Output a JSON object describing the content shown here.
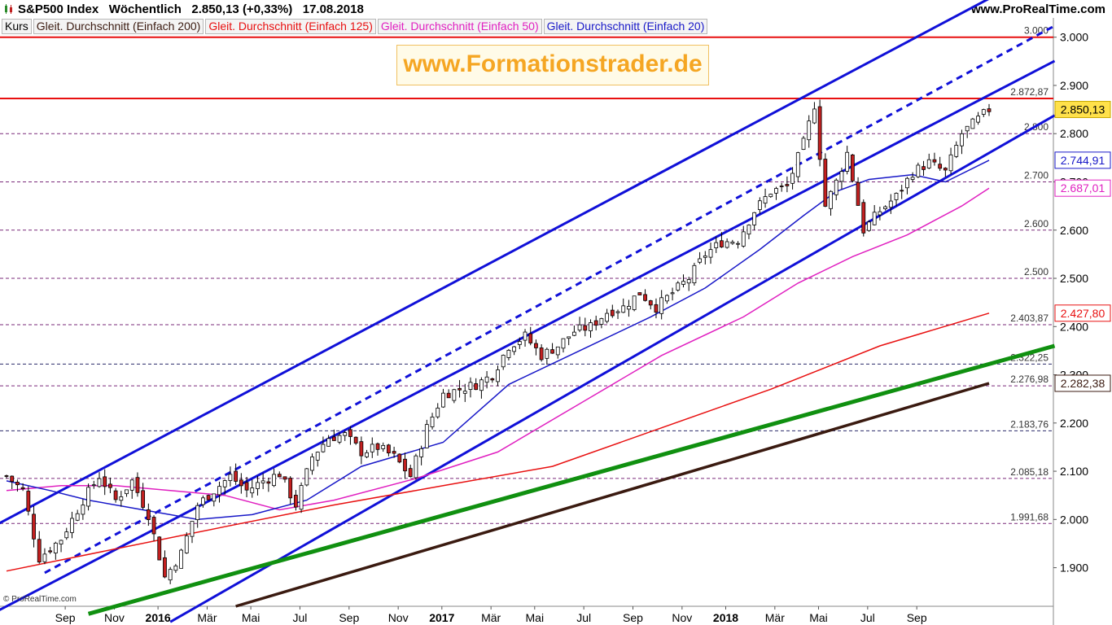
{
  "header": {
    "title": "S&P500 Index   Wöchentlich   2.850,13 (+0,33%)   17.08.2018",
    "site": "www.ProRealTime.com"
  },
  "legend": [
    {
      "label": "Kurs",
      "color": "#000000"
    },
    {
      "label": "Gleit. Durchschnitt (Einfach 200)",
      "color": "#3a1a10"
    },
    {
      "label": "Gleit. Durchschnitt (Einfach 125)",
      "color": "#e81010"
    },
    {
      "label": "Gleit. Durchschnitt (Einfach 50)",
      "color": "#e020c0"
    },
    {
      "label": "Gleit. Durchschnitt (Einfach 20)",
      "color": "#1818c8"
    }
  ],
  "watermark": "www.Formationstrader.de",
  "copyright": "© ProRealTime.com",
  "chart_data": {
    "type": "candlestick",
    "title": "S&P500 Index Wöchentlich",
    "ylim": [
      1820,
      3040
    ],
    "yticks": [
      1900,
      2000,
      2100,
      2200,
      2300,
      2400,
      2500,
      2600,
      2700,
      2800,
      2900,
      3000
    ],
    "ytick_labels": [
      "1.900",
      "2.000",
      "2.100",
      "2.200",
      "2.300",
      "2.400",
      "2.500",
      "2.600",
      "2.700",
      "2.800",
      "2.900",
      "3.000"
    ],
    "xticks": [
      "Sep",
      "Nov",
      "2016",
      "Mär",
      "Mai",
      "Jul",
      "Sep",
      "Nov",
      "2017",
      "Mär",
      "Mai",
      "Jul",
      "Sep",
      "Nov",
      "2018",
      "Mär",
      "Mai",
      "Jul",
      "Sep"
    ],
    "bold_xticks": [
      "2016",
      "2017",
      "2018"
    ],
    "levels": [
      {
        "value": 3000,
        "label": "3.000",
        "color": "#e81010",
        "style": "solid"
      },
      {
        "value": 2872.87,
        "label": "2.872,87",
        "color": "#e81010",
        "style": "solid"
      },
      {
        "value": 2800,
        "label": "2.800",
        "color": "#7a2a7a",
        "style": "dashed"
      },
      {
        "value": 2700,
        "label": "2.700",
        "color": "#7a2a7a",
        "style": "dashed"
      },
      {
        "value": 2600,
        "label": "2.600",
        "color": "#7a2a7a",
        "style": "dashed"
      },
      {
        "value": 2500,
        "label": "2.500",
        "color": "#7a2a7a",
        "style": "dashed"
      },
      {
        "value": 2403.87,
        "label": "2.403,87",
        "color": "#7a2a7a",
        "style": "dashed"
      },
      {
        "value": 2322.25,
        "label": "2.322,25",
        "color": "#2a2a6a",
        "style": "dashed"
      },
      {
        "value": 2276.98,
        "label": "2.276,98",
        "color": "#7a2a7a",
        "style": "dashed"
      },
      {
        "value": 2183.76,
        "label": "2.183,76",
        "color": "#2a2a6a",
        "style": "dashed"
      },
      {
        "value": 2085.18,
        "label": "2.085,18",
        "color": "#7a2a7a",
        "style": "dashed"
      },
      {
        "value": 1991.68,
        "label": "1.991,68",
        "color": "#7a2a7a",
        "style": "dashed"
      }
    ],
    "value_tags": [
      {
        "value": 2850.13,
        "label": "2.850,13",
        "bg": "#ffe14a",
        "fg": "#000000",
        "border": "#c8a800"
      },
      {
        "value": 2744.91,
        "label": "2.744,91",
        "bg": "#ffffff",
        "fg": "#1818c8",
        "border": "#1818c8"
      },
      {
        "value": 2687.01,
        "label": "2.687,01",
        "bg": "#ffffff",
        "fg": "#e020c0",
        "border": "#e020c0"
      },
      {
        "value": 2427.8,
        "label": "2.427,80",
        "bg": "#ffffff",
        "fg": "#e81010",
        "border": "#e81010"
      },
      {
        "value": 2282.38,
        "label": "2.282,38",
        "bg": "#ffffff",
        "fg": "#3a1a10",
        "border": "#3a1a10"
      }
    ],
    "anchors": [
      {
        "w": 0,
        "v": 2090
      },
      {
        "w": 3,
        "v": 2060
      },
      {
        "w": 6,
        "v": 1920
      },
      {
        "w": 10,
        "v": 1960
      },
      {
        "w": 14,
        "v": 2040
      },
      {
        "w": 17,
        "v": 2090
      },
      {
        "w": 20,
        "v": 2040
      },
      {
        "w": 23,
        "v": 2080
      },
      {
        "w": 26,
        "v": 2010
      },
      {
        "w": 29,
        "v": 1880
      },
      {
        "w": 32,
        "v": 1930
      },
      {
        "w": 35,
        "v": 2030
      },
      {
        "w": 38,
        "v": 2060
      },
      {
        "w": 41,
        "v": 2090
      },
      {
        "w": 44,
        "v": 2060
      },
      {
        "w": 47,
        "v": 2080
      },
      {
        "w": 50,
        "v": 2095
      },
      {
        "w": 53,
        "v": 2030
      },
      {
        "w": 56,
        "v": 2130
      },
      {
        "w": 59,
        "v": 2170
      },
      {
        "w": 62,
        "v": 2175
      },
      {
        "w": 65,
        "v": 2140
      },
      {
        "w": 68,
        "v": 2150
      },
      {
        "w": 71,
        "v": 2130
      },
      {
        "w": 74,
        "v": 2090
      },
      {
        "w": 77,
        "v": 2190
      },
      {
        "w": 80,
        "v": 2260
      },
      {
        "w": 83,
        "v": 2270
      },
      {
        "w": 86,
        "v": 2280
      },
      {
        "w": 89,
        "v": 2300
      },
      {
        "w": 92,
        "v": 2360
      },
      {
        "w": 95,
        "v": 2380
      },
      {
        "w": 98,
        "v": 2340
      },
      {
        "w": 101,
        "v": 2360
      },
      {
        "w": 104,
        "v": 2390
      },
      {
        "w": 107,
        "v": 2400
      },
      {
        "w": 110,
        "v": 2430
      },
      {
        "w": 113,
        "v": 2440
      },
      {
        "w": 116,
        "v": 2470
      },
      {
        "w": 119,
        "v": 2440
      },
      {
        "w": 122,
        "v": 2470
      },
      {
        "w": 125,
        "v": 2500
      },
      {
        "w": 128,
        "v": 2550
      },
      {
        "w": 131,
        "v": 2575
      },
      {
        "w": 134,
        "v": 2580
      },
      {
        "w": 137,
        "v": 2640
      },
      {
        "w": 140,
        "v": 2680
      },
      {
        "w": 143,
        "v": 2690
      },
      {
        "w": 146,
        "v": 2780
      },
      {
        "w": 148,
        "v": 2860
      },
      {
        "w": 150,
        "v": 2650
      },
      {
        "w": 152,
        "v": 2700
      },
      {
        "w": 154,
        "v": 2760
      },
      {
        "w": 157,
        "v": 2600
      },
      {
        "w": 160,
        "v": 2640
      },
      {
        "w": 163,
        "v": 2670
      },
      {
        "w": 166,
        "v": 2720
      },
      {
        "w": 169,
        "v": 2740
      },
      {
        "w": 172,
        "v": 2720
      },
      {
        "w": 175,
        "v": 2800
      },
      {
        "w": 178,
        "v": 2830
      },
      {
        "w": 180,
        "v": 2850.13
      }
    ],
    "sma": [
      {
        "name": "Gleit. Durchschnitt (Einfach 200)",
        "color": "#3a1a10",
        "width": 3.5,
        "points": [
          [
            42,
            1820
          ],
          [
            180,
            2282.38
          ]
        ]
      },
      {
        "name": "Gleit. Durchschnitt (Einfach 125)",
        "color": "#e81010",
        "width": 1.5,
        "points": [
          [
            0,
            1893
          ],
          [
            40,
            1985
          ],
          [
            60,
            2030
          ],
          [
            80,
            2070
          ],
          [
            100,
            2110
          ],
          [
            120,
            2190
          ],
          [
            140,
            2270
          ],
          [
            160,
            2360
          ],
          [
            180,
            2427.8
          ]
        ]
      },
      {
        "name": "Gleit. Durchschnitt (Einfach 50)",
        "color": "#e020c0",
        "width": 1.5,
        "points": [
          [
            0,
            2060
          ],
          [
            10,
            2070
          ],
          [
            20,
            2070
          ],
          [
            30,
            2060
          ],
          [
            40,
            2050
          ],
          [
            50,
            2020
          ],
          [
            60,
            2040
          ],
          [
            75,
            2085
          ],
          [
            90,
            2140
          ],
          [
            105,
            2240
          ],
          [
            120,
            2340
          ],
          [
            135,
            2420
          ],
          [
            145,
            2490
          ],
          [
            155,
            2545
          ],
          [
            165,
            2590
          ],
          [
            175,
            2650
          ],
          [
            180,
            2687.01
          ]
        ]
      },
      {
        "name": "Gleit. Durchschnitt (Einfach 20)",
        "color": "#1818c8",
        "width": 1.5,
        "points": [
          [
            0,
            2080
          ],
          [
            8,
            2060
          ],
          [
            15,
            2040
          ],
          [
            25,
            2020
          ],
          [
            35,
            2000
          ],
          [
            45,
            2010
          ],
          [
            55,
            2040
          ],
          [
            65,
            2110
          ],
          [
            80,
            2160
          ],
          [
            92,
            2280
          ],
          [
            105,
            2350
          ],
          [
            118,
            2420
          ],
          [
            128,
            2480
          ],
          [
            138,
            2560
          ],
          [
            146,
            2630
          ],
          [
            152,
            2680
          ],
          [
            158,
            2705
          ],
          [
            166,
            2715
          ],
          [
            172,
            2700
          ],
          [
            180,
            2744.91
          ]
        ]
      }
    ],
    "trendlines": [
      {
        "color": "#1010d8",
        "width": 3,
        "dash": false,
        "points": [
          [
            0,
            2000
          ],
          [
            180,
            3080
          ]
        ]
      },
      {
        "color": "#1010d8",
        "width": 3,
        "dash": false,
        "points": [
          [
            0,
            1820
          ],
          [
            180,
            2880
          ]
        ]
      },
      {
        "color": "#1010d8",
        "width": 3,
        "dash": false,
        "points": [
          [
            35,
            1820
          ],
          [
            180,
            2760
          ]
        ]
      },
      {
        "color": "#1010d8",
        "width": 3,
        "dash": true,
        "points": [
          [
            12,
            1920
          ],
          [
            180,
            2950
          ]
        ]
      },
      {
        "color": "#109010",
        "width": 5,
        "dash": false,
        "points": [
          [
            20,
            1820
          ],
          [
            180,
            2322.25
          ]
        ]
      }
    ]
  }
}
